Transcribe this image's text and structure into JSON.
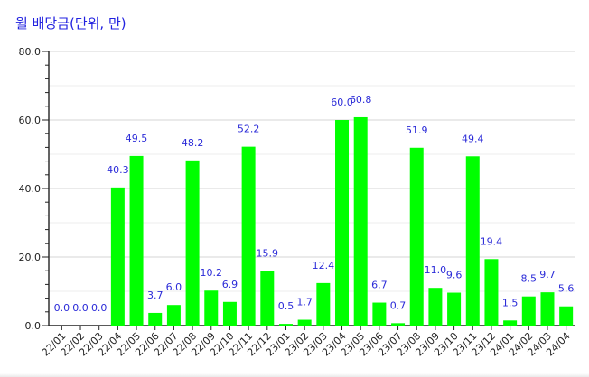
{
  "chart_data": {
    "type": "bar",
    "title": "월 배당금(단위, 만)",
    "categories": [
      "22/01",
      "22/02",
      "22/03",
      "22/04",
      "22/05",
      "22/06",
      "22/07",
      "22/08",
      "22/09",
      "22/10",
      "22/11",
      "22/12",
      "23/01",
      "23/02",
      "23/03",
      "23/04",
      "23/05",
      "23/06",
      "23/07",
      "23/08",
      "23/09",
      "23/10",
      "23/11",
      "23/12",
      "24/01",
      "24/02",
      "24/03",
      "24/04"
    ],
    "values": [
      0.0,
      0.0,
      0.0,
      40.3,
      49.5,
      3.7,
      6.0,
      48.2,
      10.2,
      6.9,
      52.2,
      15.9,
      0.5,
      1.7,
      12.4,
      60.0,
      60.8,
      6.7,
      0.7,
      51.9,
      11.0,
      9.6,
      49.4,
      19.4,
      1.5,
      8.5,
      9.7,
      5.6
    ],
    "value_labels": [
      "0.0",
      "0.0",
      "0.0",
      "40.3",
      "49.5",
      "3.7",
      "6.0",
      "48.2",
      "10.2",
      "6.9",
      "52.2",
      "15.9",
      "0.5",
      "1.7",
      "12.4",
      "60.0",
      "60.8",
      "6.7",
      "0.7",
      "51.9",
      "11.0",
      "9.6",
      "49.4",
      "19.4",
      "1.5",
      "8.5",
      "9.7",
      "5.6"
    ],
    "ylim": [
      0,
      80
    ],
    "yticks": [
      "0.0",
      "20.0",
      "40.0",
      "60.0",
      "80.0"
    ],
    "grid": true,
    "bar_color": "#00ff00",
    "label_color": "#2b2bd8",
    "title_color": "#2222e0"
  }
}
